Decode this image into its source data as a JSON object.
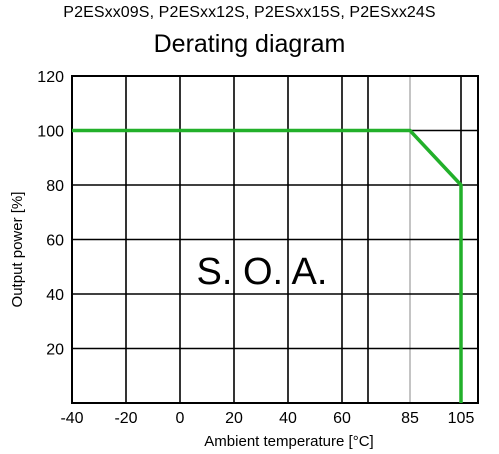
{
  "chart_data": {
    "type": "line",
    "subtitle": "P2ESxx09S, P2ESxx12S, P2ESxx15S, P2ESxx24S",
    "title": "Derating diagram",
    "xlabel": "Ambient temperature [°C]",
    "ylabel": "Output power [%]",
    "x_ticks": [
      -40,
      -20,
      0,
      20,
      40,
      60,
      85,
      105
    ],
    "y_ticks": [
      20,
      40,
      60,
      80,
      100,
      120
    ],
    "xlim": [
      -40,
      115
    ],
    "ylim": [
      0,
      120
    ],
    "grid": true,
    "annotation": "S. O. A.",
    "series": [
      {
        "color": "#22b02a",
        "x": [
          -40,
          85,
          105,
          105
        ],
        "y": [
          100,
          100,
          80,
          0
        ]
      }
    ]
  }
}
